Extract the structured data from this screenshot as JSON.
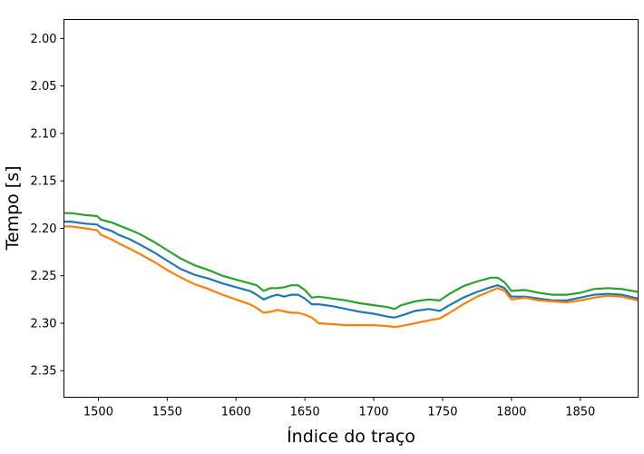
{
  "chart_data": {
    "type": "line",
    "xlabel": "Índice do traço",
    "ylabel": "Tempo [s]",
    "xlim": [
      1475,
      1892
    ],
    "ylim": [
      2.378,
      1.98
    ],
    "y_inverted": true,
    "grid": false,
    "legend": "none",
    "x_ticks": [
      1500,
      1550,
      1600,
      1650,
      1700,
      1750,
      1800,
      1850
    ],
    "x_tick_labels": [
      "1500",
      "1550",
      "1600",
      "1650",
      "1700",
      "1750",
      "1800",
      "1850"
    ],
    "y_ticks": [
      2.0,
      2.05,
      2.1,
      2.15,
      2.2,
      2.25,
      2.3,
      2.35
    ],
    "y_tick_labels": [
      "2.00",
      "2.05",
      "2.10",
      "2.15",
      "2.20",
      "2.25",
      "2.30",
      "2.35"
    ],
    "series": [
      {
        "color": "#1f77b4",
        "x": [
          1475,
          1480,
          1490,
          1499,
          1502,
          1510,
          1515,
          1522,
          1530,
          1540,
          1550,
          1560,
          1570,
          1580,
          1590,
          1600,
          1610,
          1615,
          1620,
          1625,
          1630,
          1635,
          1640,
          1645,
          1650,
          1655,
          1660,
          1670,
          1680,
          1690,
          1700,
          1710,
          1715,
          1720,
          1730,
          1740,
          1748,
          1755,
          1765,
          1775,
          1785,
          1790,
          1795,
          1800,
          1810,
          1820,
          1830,
          1840,
          1850,
          1860,
          1870,
          1880,
          1892
        ],
        "y": [
          2.193,
          2.193,
          2.195,
          2.196,
          2.199,
          2.203,
          2.207,
          2.211,
          2.217,
          2.225,
          2.234,
          2.243,
          2.249,
          2.253,
          2.258,
          2.262,
          2.266,
          2.27,
          2.275,
          2.272,
          2.27,
          2.272,
          2.27,
          2.27,
          2.274,
          2.28,
          2.28,
          2.282,
          2.285,
          2.288,
          2.29,
          2.293,
          2.294,
          2.292,
          2.287,
          2.285,
          2.287,
          2.281,
          2.273,
          2.267,
          2.262,
          2.26,
          2.263,
          2.272,
          2.272,
          2.274,
          2.276,
          2.276,
          2.273,
          2.27,
          2.269,
          2.27,
          2.274
        ]
      },
      {
        "color": "#ff7f0e",
        "x": [
          1475,
          1480,
          1490,
          1499,
          1502,
          1510,
          1515,
          1522,
          1530,
          1540,
          1550,
          1560,
          1570,
          1580,
          1590,
          1600,
          1610,
          1615,
          1620,
          1625,
          1630,
          1640,
          1645,
          1650,
          1655,
          1660,
          1670,
          1680,
          1690,
          1700,
          1710,
          1715,
          1720,
          1730,
          1740,
          1748,
          1755,
          1765,
          1775,
          1785,
          1790,
          1795,
          1800,
          1810,
          1820,
          1830,
          1840,
          1850,
          1860,
          1870,
          1880,
          1892
        ],
        "y": [
          2.198,
          2.198,
          2.2,
          2.202,
          2.207,
          2.212,
          2.216,
          2.221,
          2.227,
          2.235,
          2.244,
          2.252,
          2.259,
          2.264,
          2.27,
          2.275,
          2.28,
          2.284,
          2.289,
          2.288,
          2.286,
          2.289,
          2.289,
          2.291,
          2.294,
          2.3,
          2.301,
          2.302,
          2.302,
          2.302,
          2.303,
          2.304,
          2.303,
          2.3,
          2.297,
          2.295,
          2.289,
          2.28,
          2.272,
          2.266,
          2.263,
          2.266,
          2.275,
          2.273,
          2.276,
          2.277,
          2.278,
          2.276,
          2.273,
          2.271,
          2.272,
          2.276
        ]
      },
      {
        "color": "#2ca02c",
        "x": [
          1475,
          1480,
          1490,
          1499,
          1502,
          1510,
          1515,
          1522,
          1530,
          1540,
          1550,
          1560,
          1570,
          1580,
          1590,
          1600,
          1610,
          1615,
          1620,
          1625,
          1630,
          1635,
          1640,
          1645,
          1650,
          1655,
          1660,
          1670,
          1680,
          1690,
          1700,
          1710,
          1715,
          1720,
          1730,
          1740,
          1748,
          1755,
          1765,
          1775,
          1785,
          1790,
          1795,
          1800,
          1810,
          1820,
          1830,
          1840,
          1850,
          1860,
          1870,
          1880,
          1892
        ],
        "y": [
          2.184,
          2.184,
          2.186,
          2.187,
          2.191,
          2.194,
          2.197,
          2.201,
          2.206,
          2.214,
          2.223,
          2.232,
          2.239,
          2.244,
          2.25,
          2.254,
          2.258,
          2.26,
          2.266,
          2.263,
          2.263,
          2.262,
          2.26,
          2.26,
          2.265,
          2.273,
          2.272,
          2.274,
          2.276,
          2.279,
          2.281,
          2.283,
          2.285,
          2.281,
          2.277,
          2.275,
          2.276,
          2.269,
          2.261,
          2.256,
          2.252,
          2.252,
          2.257,
          2.266,
          2.265,
          2.268,
          2.27,
          2.27,
          2.268,
          2.264,
          2.263,
          2.264,
          2.267
        ]
      }
    ]
  }
}
